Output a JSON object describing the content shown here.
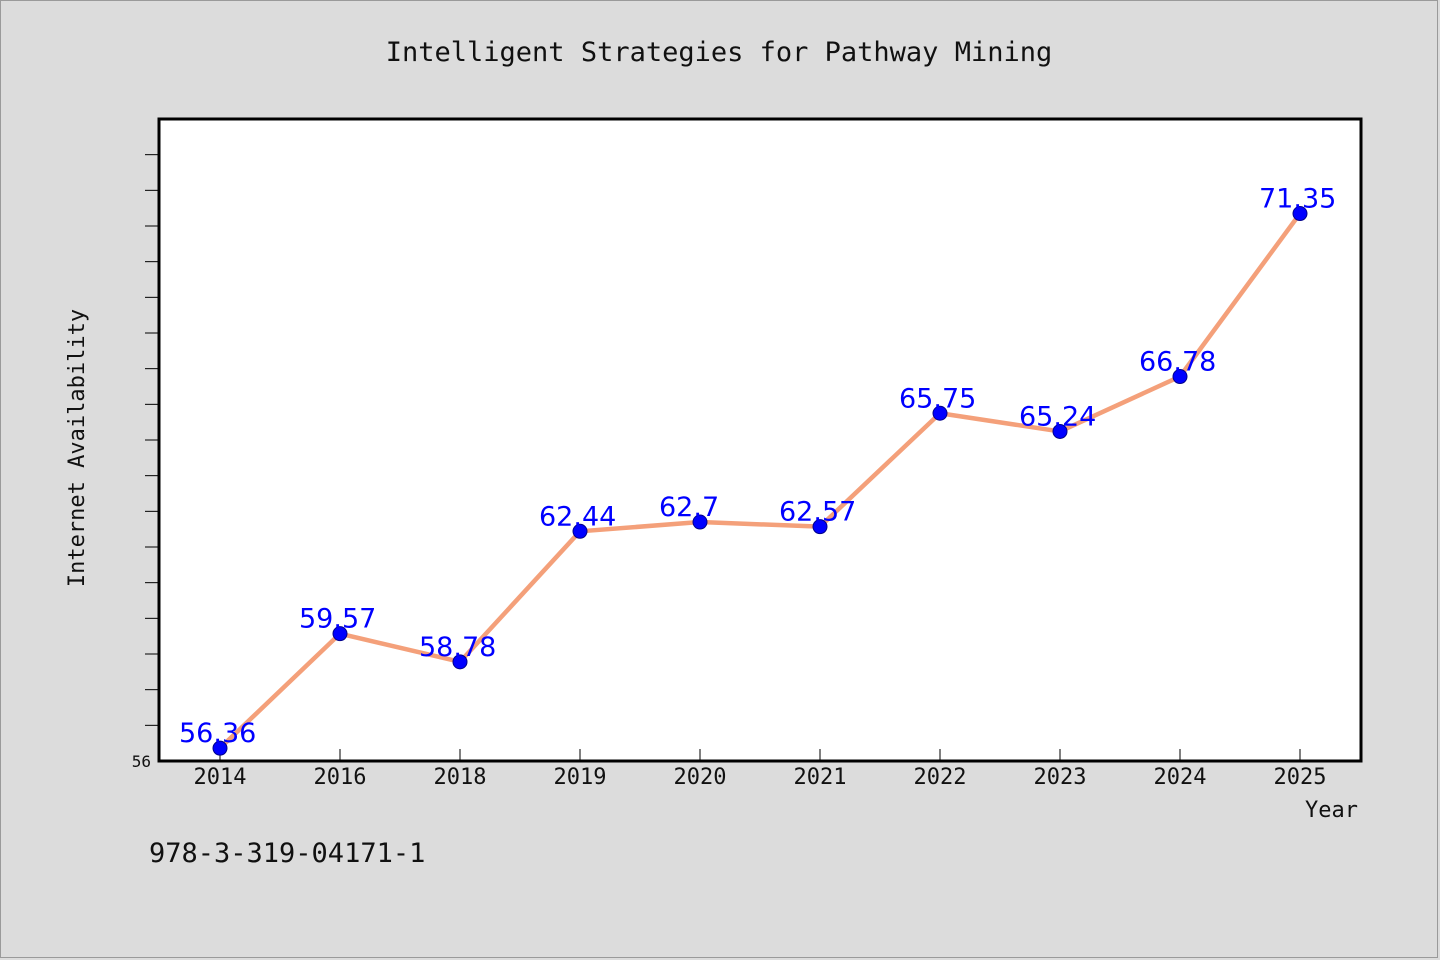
{
  "footer": {
    "isbn": "978-3-319-04171-1"
  },
  "colors": {
    "line": "#f4a07a",
    "marker": "#0000ff",
    "marker_edge": "#00008b",
    "label": "#0000ff",
    "plot_bg": "#ffffff",
    "page_bg": "#dcdcdc"
  },
  "chart_data": {
    "type": "line",
    "title": "Intelligent Strategies for Pathway Mining",
    "xlabel": "Year",
    "ylabel": "Internet Availability",
    "categories": [
      "2014",
      "2016",
      "2018",
      "2019",
      "2020",
      "2021",
      "2022",
      "2023",
      "2024",
      "2025"
    ],
    "series": [
      {
        "values": [
          56.36,
          59.57,
          58.78,
          62.44,
          62.7,
          62.57,
          65.75,
          65.24,
          66.78,
          71.35
        ]
      }
    ],
    "data_labels": [
      "56.36",
      "59.57",
      "58.78",
      "62.44",
      "62.7",
      "62.57",
      "65.75",
      "65.24",
      "66.78",
      "71.35"
    ],
    "ylim": [
      56,
      74
    ],
    "ytick_labels": [
      "56"
    ],
    "yticks_minor_step": 1,
    "grid": false,
    "legend": "none"
  }
}
